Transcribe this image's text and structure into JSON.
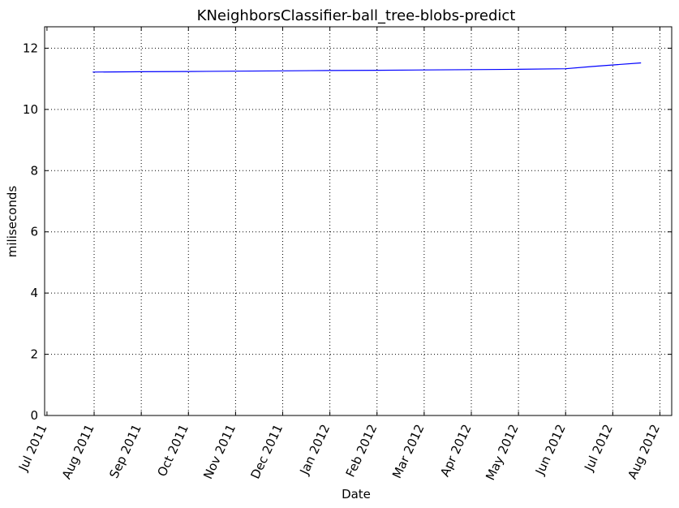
{
  "chart_data": {
    "type": "line",
    "title": "KNeighborsClassifier-ball_tree-blobs-predict",
    "xlabel": "Date",
    "ylabel": "miliseconds",
    "ylim": [
      0,
      12.7
    ],
    "grid": true,
    "x_tick_labels": [
      "Jul 2011",
      "Aug 2011",
      "Sep 2011",
      "Oct 2011",
      "Nov 2011",
      "Dec 2011",
      "Jan 2012",
      "Feb 2012",
      "Mar 2012",
      "Apr 2012",
      "May 2012",
      "Jun 2012",
      "Jul 2012",
      "Aug 2012"
    ],
    "y_tick_labels": [
      "0",
      "2",
      "4",
      "6",
      "8",
      "10",
      "12"
    ],
    "y_ticks": [
      0,
      2,
      4,
      6,
      8,
      10,
      12
    ],
    "series": [
      {
        "name": "predict",
        "color": "#0000ff",
        "x": [
          0.97,
          2.0,
          3.0,
          4.0,
          5.0,
          6.0,
          7.0,
          8.0,
          9.0,
          10.0,
          11.0,
          11.55,
          12.6
        ],
        "values": [
          11.22,
          11.23,
          11.24,
          11.25,
          11.26,
          11.27,
          11.28,
          11.29,
          11.3,
          11.31,
          11.33,
          11.4,
          11.52
        ]
      }
    ]
  }
}
